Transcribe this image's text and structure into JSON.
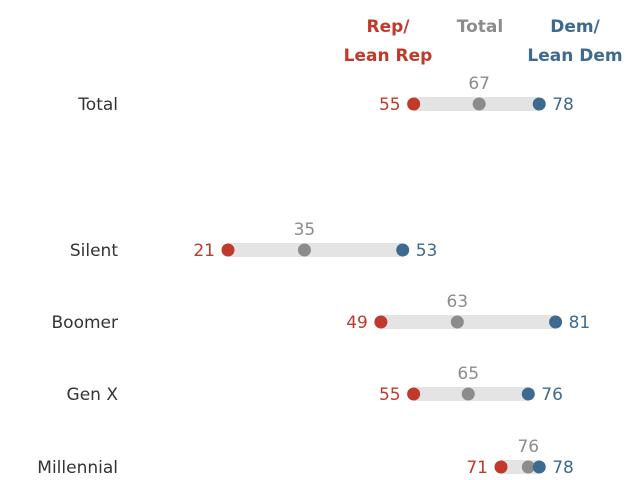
{
  "chart_data": {
    "type": "dot",
    "series": [
      {
        "name": "Rep/ Lean Rep",
        "color": "#c0392b"
      },
      {
        "name": "Total",
        "color": "#8c8c8c"
      },
      {
        "name": "Dem/ Lean Dem",
        "color": "#3d6a8f"
      }
    ],
    "legend": {
      "rep": [
        "Rep/",
        "Lean Rep"
      ],
      "total": [
        "Total"
      ],
      "dem": [
        "Dem/",
        "Lean Dem"
      ]
    },
    "categories": [
      "Total",
      "Silent",
      "Boomer",
      "Gen X",
      "Millennial"
    ],
    "rows": [
      {
        "category": "Total",
        "rep": 55,
        "total": 67,
        "dem": 78
      },
      {
        "category": "Silent",
        "rep": 21,
        "total": 35,
        "dem": 53
      },
      {
        "category": "Boomer",
        "rep": 49,
        "total": 63,
        "dem": 81
      },
      {
        "category": "Gen X",
        "rep": 55,
        "total": 65,
        "dem": 76
      },
      {
        "category": "Millennial",
        "rep": 71,
        "total": 76,
        "dem": 78
      }
    ],
    "title": "",
    "xlabel": "",
    "ylabel": "",
    "grid": false
  }
}
